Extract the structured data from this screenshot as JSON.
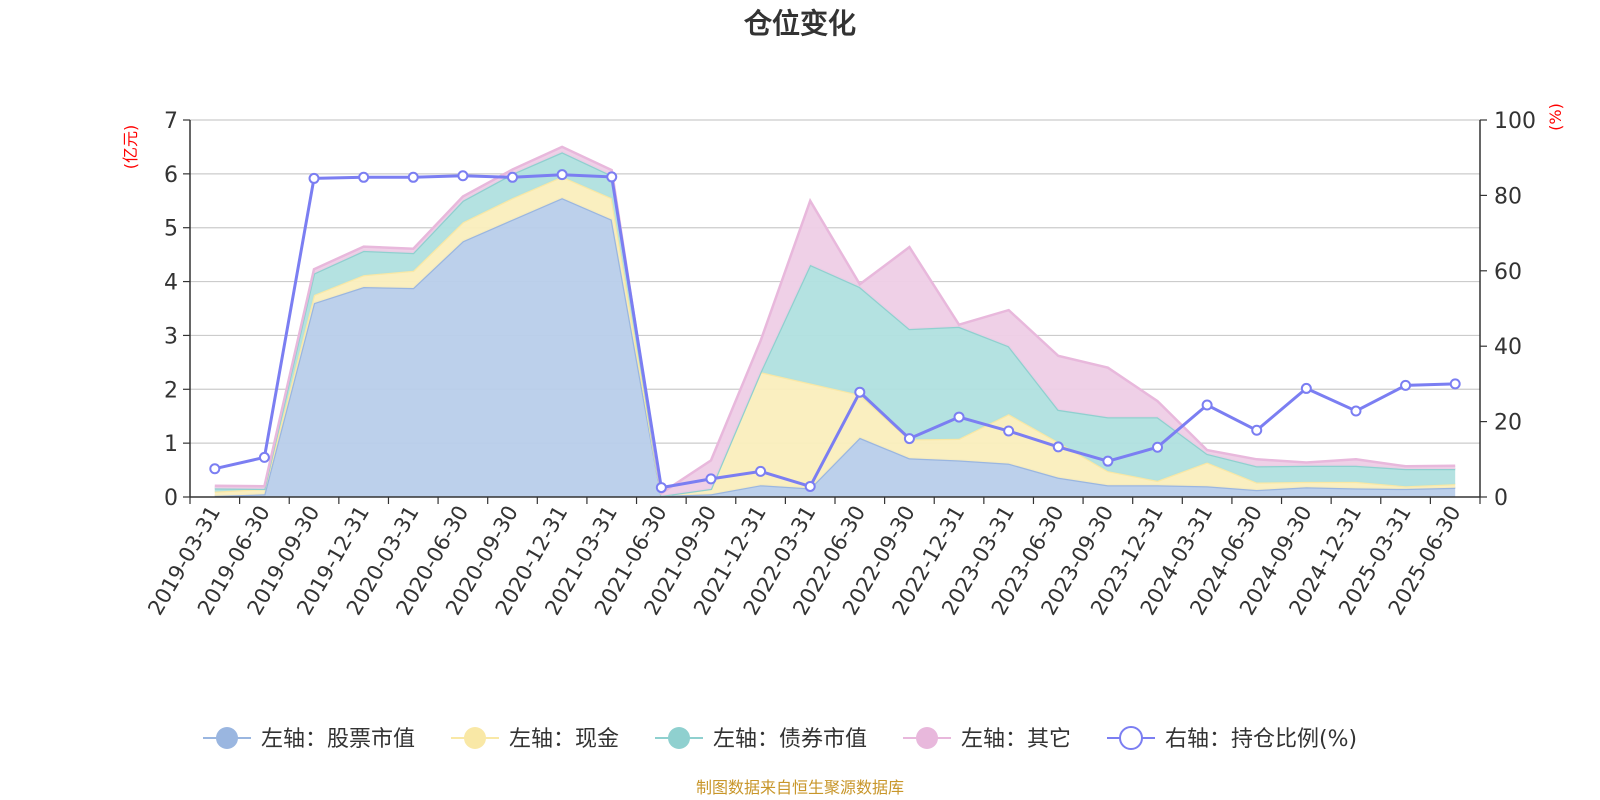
{
  "chart_data": {
    "type": "area",
    "title": "仓位变化",
    "left_axis": {
      "unit": "(亿元)",
      "min": 0,
      "max": 7,
      "ticks": [
        0,
        1,
        2,
        3,
        4,
        5,
        6,
        7
      ]
    },
    "right_axis": {
      "unit": "(%)",
      "min": 0,
      "max": 100,
      "ticks": [
        0,
        20,
        40,
        60,
        80,
        100
      ]
    },
    "categories": [
      "2019-03-31",
      "2019-06-30",
      "2019-09-30",
      "2019-12-31",
      "2020-03-31",
      "2020-06-30",
      "2020-09-30",
      "2020-12-31",
      "2021-03-31",
      "2021-06-30",
      "2021-09-30",
      "2021-12-31",
      "2022-03-31",
      "2022-06-30",
      "2022-09-30",
      "2022-12-31",
      "2023-03-31",
      "2023-06-30",
      "2023-09-30",
      "2023-12-31",
      "2024-03-31",
      "2024-06-30",
      "2024-09-30",
      "2024-12-31",
      "2025-03-31",
      "2025-06-30"
    ],
    "series": [
      {
        "name": "左轴：股票市值",
        "axis": "left",
        "stack": true,
        "color": "#9ab6e0",
        "fill": "#b8cdea",
        "values": [
          0.02,
          0.05,
          3.6,
          3.9,
          3.88,
          4.75,
          5.15,
          5.55,
          5.15,
          0.02,
          0.05,
          0.22,
          0.16,
          1.1,
          0.72,
          0.68,
          0.62,
          0.36,
          0.22,
          0.22,
          0.2,
          0.13,
          0.18,
          0.16,
          0.15,
          0.17
        ]
      },
      {
        "name": "左轴：现金",
        "axis": "left",
        "stack": true,
        "color": "#f9e8a6",
        "fill": "#faeebd",
        "values": [
          0.08,
          0.1,
          0.15,
          0.22,
          0.32,
          0.35,
          0.4,
          0.4,
          0.4,
          0.0,
          0.1,
          2.1,
          1.95,
          0.8,
          0.35,
          0.4,
          0.92,
          0.66,
          0.26,
          0.08,
          0.44,
          0.14,
          0.1,
          0.12,
          0.05,
          0.07
        ]
      },
      {
        "name": "左轴：债券市值",
        "axis": "left",
        "stack": true,
        "color": "#8fd0cf",
        "fill": "#b0e0df",
        "values": [
          0.06,
          0.0,
          0.4,
          0.45,
          0.33,
          0.4,
          0.45,
          0.45,
          0.42,
          0.0,
          0.0,
          0.0,
          2.2,
          2.0,
          2.05,
          2.08,
          1.26,
          0.6,
          1.0,
          1.18,
          0.16,
          0.3,
          0.3,
          0.3,
          0.32,
          0.28
        ]
      },
      {
        "name": "左轴：其它",
        "axis": "left",
        "stack": true,
        "color": "#e8b8dc",
        "fill": "#eecde6",
        "values": [
          0.05,
          0.05,
          0.08,
          0.08,
          0.08,
          0.08,
          0.08,
          0.1,
          0.1,
          0.05,
          0.53,
          0.58,
          1.19,
          0.05,
          1.52,
          0.04,
          0.67,
          1.0,
          0.92,
          0.3,
          0.07,
          0.13,
          0.06,
          0.12,
          0.05,
          0.06
        ]
      },
      {
        "name": "右轴：持仓比例(%)",
        "axis": "right",
        "stack": false,
        "type": "line",
        "color": "#7b7ef2",
        "values": [
          7.5,
          10.5,
          84.5,
          84.8,
          84.8,
          85.2,
          84.8,
          85.5,
          84.9,
          2.5,
          4.8,
          6.8,
          2.8,
          27.8,
          15.5,
          21.2,
          17.5,
          13.3,
          9.5,
          13.2,
          24.4,
          17.7,
          28.8,
          22.8,
          29.6,
          30.0
        ]
      }
    ],
    "legend": {
      "position": "bottom"
    },
    "grid": true
  },
  "footer": {
    "source": "制图数据来自恒生聚源数据库"
  }
}
